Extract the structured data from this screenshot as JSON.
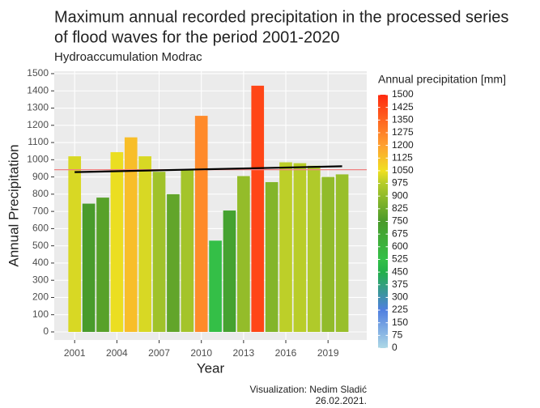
{
  "chart_data": {
    "type": "bar",
    "title": "Maximum annual recorded precipitation in the processed series",
    "title_line2": "of flood waves for the period 2001-2020",
    "subtitle": "Hydroaccumulation Modrac",
    "x_label": "Year",
    "y_label": "Annual Precipitation",
    "x": [
      2001,
      2002,
      2003,
      2004,
      2005,
      2006,
      2007,
      2008,
      2009,
      2010,
      2011,
      2012,
      2013,
      2014,
      2015,
      2016,
      2017,
      2018,
      2019,
      2020
    ],
    "values": [
      1020,
      745,
      780,
      1044,
      1130,
      1020,
      930,
      800,
      940,
      1255,
      530,
      705,
      905,
      1430,
      870,
      985,
      980,
      965,
      900,
      915
    ],
    "xlim": [
      1999.55,
      2021.75
    ],
    "xticks": [
      2001,
      2004,
      2007,
      2010,
      2013,
      2016,
      2019
    ],
    "ylim": [
      -47,
      1514
    ],
    "yticks": [
      0,
      100,
      200,
      300,
      400,
      500,
      600,
      700,
      800,
      900,
      1000,
      1100,
      1200,
      1300,
      1400,
      1500
    ],
    "grid": true,
    "reference_line": {
      "value": 942,
      "color": "#f08080"
    },
    "trend_line": {
      "x": [
        2001,
        2020
      ],
      "values": [
        928,
        962
      ],
      "color": "#000000"
    },
    "colorbar_title": "Annual precipitation [mm]",
    "colorbar_lim": [
      0,
      1500
    ],
    "colorbar_ticks": [
      0,
      75,
      150,
      225,
      300,
      375,
      450,
      525,
      600,
      675,
      750,
      825,
      900,
      975,
      1050,
      1125,
      1200,
      1275,
      1350,
      1425,
      1500
    ],
    "colorscale": [
      {
        "value": 0,
        "color": "#add8e6"
      },
      {
        "value": 225,
        "color": "#4f7fe0"
      },
      {
        "value": 450,
        "color": "#22b04a"
      },
      {
        "value": 525,
        "color": "#33c048"
      },
      {
        "value": 750,
        "color": "#4a9a2a"
      },
      {
        "value": 975,
        "color": "#b5cc2a"
      },
      {
        "value": 1050,
        "color": "#f0e020"
      },
      {
        "value": 1200,
        "color": "#ffa030"
      },
      {
        "value": 1500,
        "color": "#ff2a10"
      }
    ],
    "caption": [
      "Visualization: Nedim Sladić",
      "26.02.2021."
    ]
  }
}
